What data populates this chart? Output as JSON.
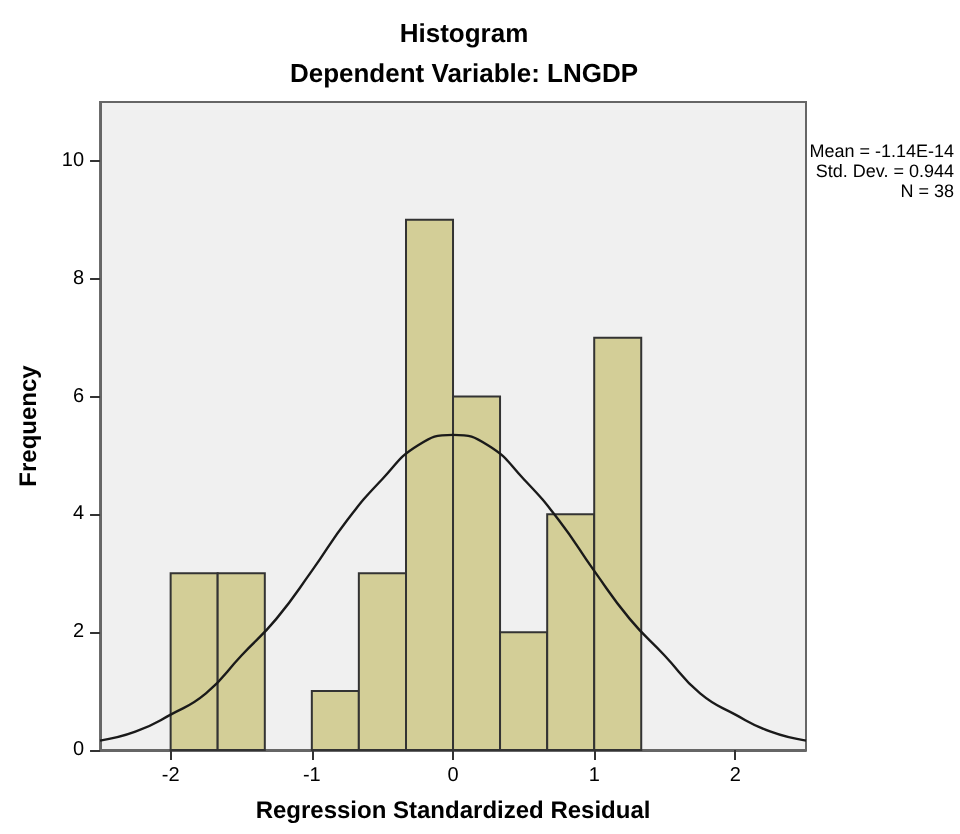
{
  "chart_data": {
    "type": "histogram",
    "title": "Histogram",
    "subtitle": "Dependent Variable: LNGDP",
    "xlabel": "Regression Standardized Residual",
    "ylabel": "Frequency",
    "annotations": [
      "Mean = -1.14E-14",
      "Std. Dev. = 0.944",
      "N = 38"
    ],
    "bins": [
      -2,
      -1.667,
      -1.333,
      -1,
      -0.667,
      -0.333,
      0,
      0.333,
      0.667,
      1,
      1.333
    ],
    "values": [
      3,
      3,
      0,
      1,
      3,
      9,
      6,
      2,
      4,
      7
    ],
    "color": "#d3ce97",
    "series": [
      {
        "type": "line",
        "color": "#1a1a1a",
        "x": [
          -2.5,
          -2.25,
          -2,
          -1.75,
          -1.5,
          -1.25,
          -1,
          -0.75,
          -0.5,
          -0.25,
          0,
          0.25,
          0.5,
          0.75,
          1,
          1.25,
          1.5,
          1.75,
          2,
          2.25,
          2.5
        ],
        "values": [
          0.16,
          0.31,
          0.6,
          0.96,
          1.6,
          2.23,
          3.04,
          3.9,
          4.6,
          5.17,
          5.35,
          5.17,
          4.6,
          3.9,
          3.04,
          2.23,
          1.6,
          0.96,
          0.6,
          0.31,
          0.16
        ]
      }
    ],
    "xlim": [
      -2.5,
      2.5
    ],
    "xticks": [
      -2,
      -1,
      0,
      1,
      2
    ],
    "ylim": [
      0,
      11
    ],
    "yticks": [
      0,
      2,
      4,
      6,
      8,
      10
    ]
  }
}
